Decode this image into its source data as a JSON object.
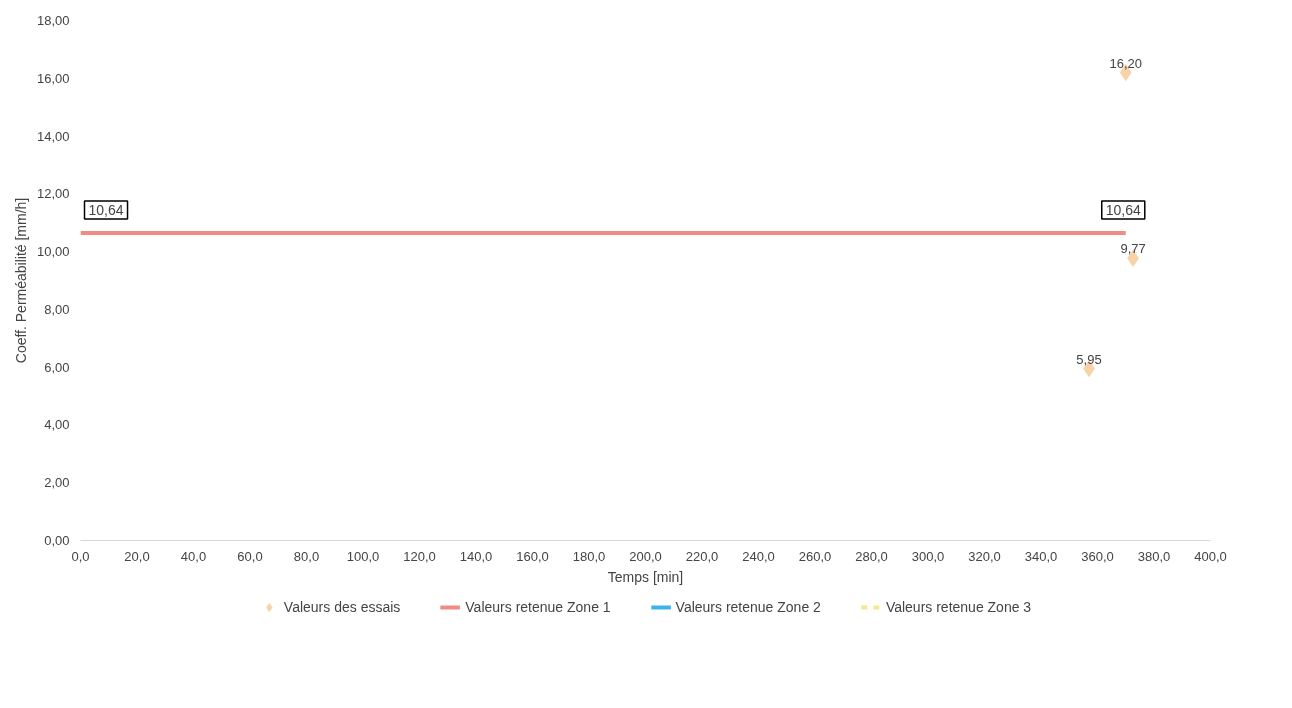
{
  "chart_data": {
    "type": "scatter",
    "xlabel": "Temps [min]",
    "ylabel": "Coeff. Perméabilité [mm/h]",
    "xlim": [
      0,
      400
    ],
    "ylim": [
      0,
      18
    ],
    "xticks": [
      {
        "value": 0,
        "label": "0,0"
      },
      {
        "value": 20,
        "label": "20,0"
      },
      {
        "value": 40,
        "label": "40,0"
      },
      {
        "value": 60,
        "label": "60,0"
      },
      {
        "value": 80,
        "label": "80,0"
      },
      {
        "value": 100,
        "label": "100,0"
      },
      {
        "value": 120,
        "label": "120,0"
      },
      {
        "value": 140,
        "label": "140,0"
      },
      {
        "value": 160,
        "label": "160,0"
      },
      {
        "value": 180,
        "label": "180,0"
      },
      {
        "value": 200,
        "label": "200,0"
      },
      {
        "value": 220,
        "label": "220,0"
      },
      {
        "value": 240,
        "label": "240,0"
      },
      {
        "value": 260,
        "label": "260,0"
      },
      {
        "value": 280,
        "label": "280,0"
      },
      {
        "value": 300,
        "label": "300,0"
      },
      {
        "value": 320,
        "label": "320,0"
      },
      {
        "value": 340,
        "label": "340,0"
      },
      {
        "value": 360,
        "label": "360,0"
      },
      {
        "value": 380,
        "label": "380,0"
      },
      {
        "value": 400,
        "label": "400,0"
      }
    ],
    "yticks": [
      {
        "value": 0,
        "label": "0,00"
      },
      {
        "value": 2,
        "label": "2,00"
      },
      {
        "value": 4,
        "label": "4,00"
      },
      {
        "value": 6,
        "label": "6,00"
      },
      {
        "value": 8,
        "label": "8,00"
      },
      {
        "value": 10,
        "label": "10,00"
      },
      {
        "value": 12,
        "label": "12,00"
      },
      {
        "value": 14,
        "label": "14,00"
      },
      {
        "value": 16,
        "label": "16,00"
      },
      {
        "value": 18,
        "label": "18,00"
      }
    ],
    "grid": false,
    "legend": "bottom",
    "series": [
      {
        "name": "Valeurs des essais",
        "marker": "diamond",
        "color": "#f9d3a8",
        "x": [
          357,
          370,
          372.6
        ],
        "values": [
          5.95,
          16.2,
          9.77
        ],
        "value_labels": [
          "5,95",
          "16,20",
          "9,77"
        ]
      },
      {
        "name": "Valeurs retenue Zone 1",
        "type": "line",
        "color": "#f08c84",
        "x": [
          0,
          370
        ],
        "values": [
          10.64,
          10.64
        ],
        "value_labels": [
          "10,64",
          "10,64"
        ]
      },
      {
        "name": "Valeurs retenue Zone 2",
        "type": "line",
        "color": "#3cb4e6"
      },
      {
        "name": "Valeurs retenue Zone 3",
        "type": "line",
        "line_style": "dashed",
        "color": "#f5e88c"
      }
    ]
  }
}
